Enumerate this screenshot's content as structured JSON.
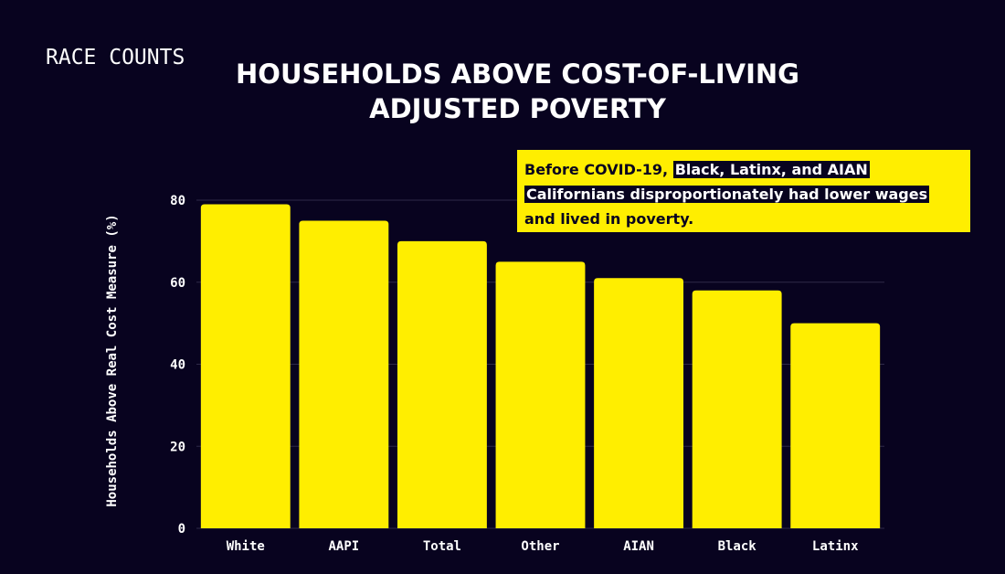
{
  "brand": "RACE COUNTS",
  "title_lines": [
    "HOUSEHOLDS ABOVE COST-OF-LIVING",
    "ADJUSTED POVERTY"
  ],
  "callout": {
    "prefix": "Before COVID-19, ",
    "highlight1": "Black, Latinx, and AIAN ",
    "highlight2": "Californians disproportionately had lower wages",
    "suffix": "and lived in poverty."
  },
  "colors": {
    "background": "#08031f",
    "bar": "#ffee00",
    "accent": "#ffee00"
  },
  "chart_data": {
    "type": "bar",
    "categories": [
      "White",
      "AAPI",
      "Total",
      "Other",
      "AIAN",
      "Black",
      "Latinx"
    ],
    "values": [
      79,
      75,
      70,
      65,
      61,
      58,
      50
    ],
    "title": "HOUSEHOLDS ABOVE COST-OF-LIVING ADJUSTED POVERTY",
    "xlabel": "",
    "ylabel": "Households Above Real Cost Measure (%)",
    "ylim": [
      0,
      80
    ],
    "yticks": [
      0,
      20,
      40,
      60,
      80
    ],
    "grid": true,
    "legend": "none"
  }
}
